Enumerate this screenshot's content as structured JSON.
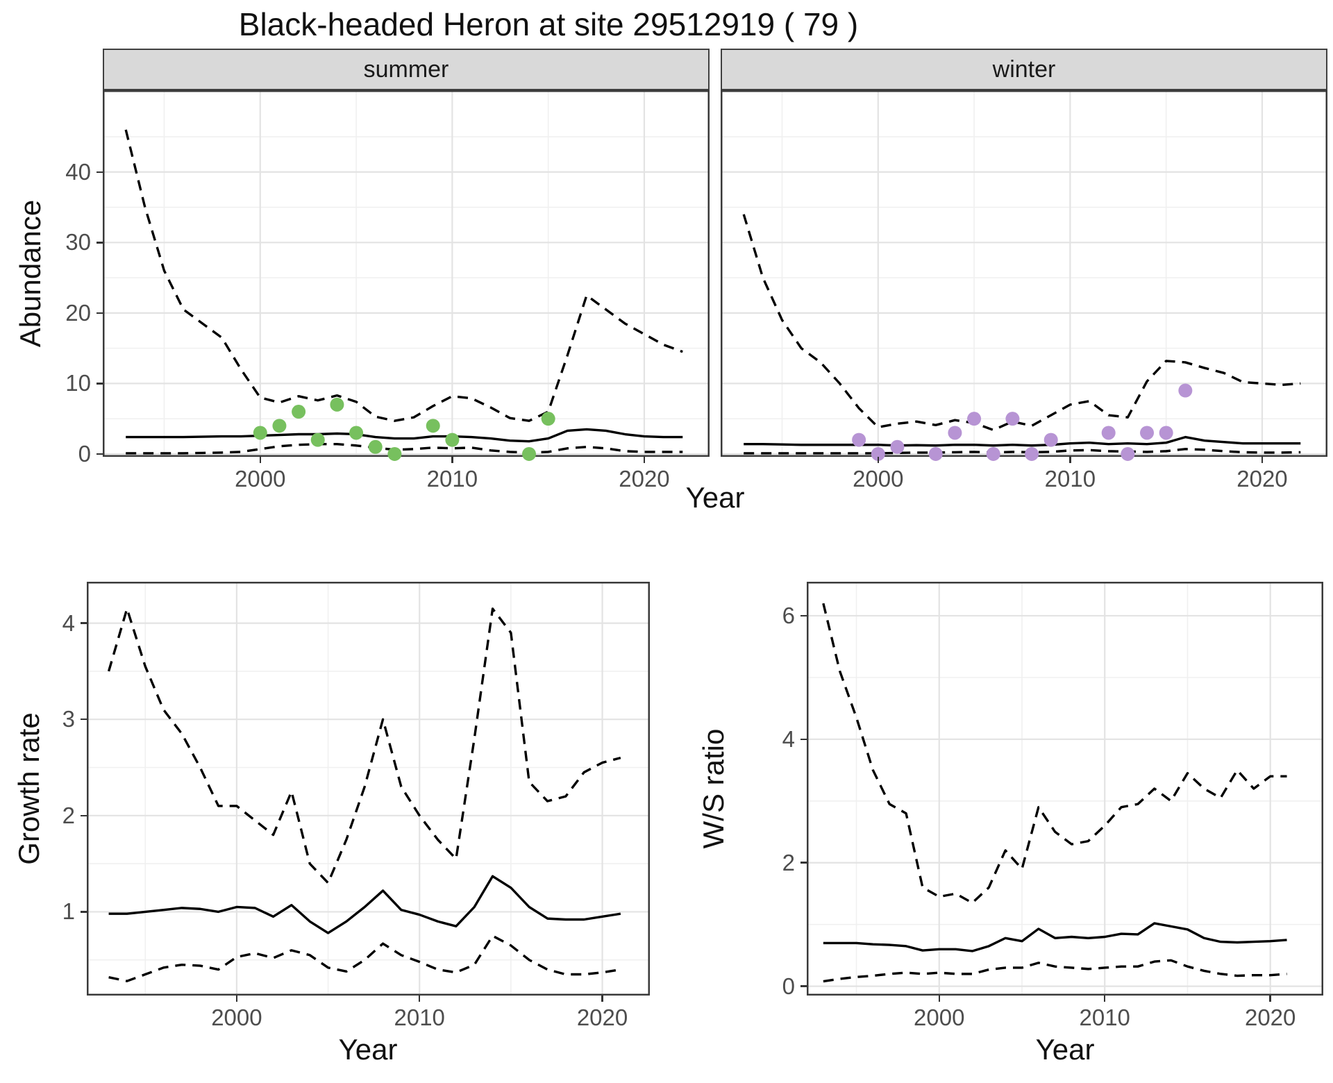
{
  "title": "Black-headed Heron at site 29512919 ( 79 )",
  "colors": {
    "summer_points": "#77c05e",
    "winter_points": "#b794d4",
    "line": "#000000",
    "strip_bg": "#d9d9d9",
    "grid_major": "#e3e3e3",
    "grid_minor": "#f0f0f0",
    "panel_border": "#3a3a3a",
    "axis_text": "#4d4d4d"
  },
  "chart_data": [
    {
      "type": "line",
      "panel": "abundance-summer",
      "facet": "summer",
      "xlabel": "Year",
      "ylabel": "Abundance",
      "xlim": [
        1991.8,
        2023.4
      ],
      "ylim": [
        -0.4,
        51.6
      ],
      "xticks": [
        2000,
        2010,
        2020
      ],
      "yticks": [
        0,
        10,
        20,
        30,
        40
      ],
      "x": [
        1993,
        1994,
        1995,
        1996,
        1997,
        1998,
        1999,
        2000,
        2001,
        2002,
        2003,
        2004,
        2005,
        2006,
        2007,
        2008,
        2009,
        2010,
        2011,
        2012,
        2013,
        2014,
        2015,
        2016,
        2017,
        2018,
        2019,
        2020,
        2021,
        2022
      ],
      "series": [
        {
          "name": "upper-ci",
          "style": "dashed",
          "values": [
            46,
            35,
            26,
            20.5,
            18.5,
            16.5,
            12,
            8,
            7.3,
            8.2,
            7.6,
            8.3,
            7.4,
            5.3,
            4.7,
            5.2,
            6.8,
            8.2,
            7.9,
            6.6,
            5.1,
            4.7,
            6,
            14,
            22.5,
            20.5,
            18.5,
            17,
            15.5,
            14.5
          ]
        },
        {
          "name": "median",
          "style": "solid",
          "values": [
            2.4,
            2.4,
            2.4,
            2.4,
            2.45,
            2.5,
            2.5,
            2.6,
            2.7,
            2.8,
            2.8,
            2.9,
            2.8,
            2.4,
            2.2,
            2.2,
            2.5,
            2.5,
            2.4,
            2.2,
            1.9,
            1.8,
            2.2,
            3.3,
            3.5,
            3.3,
            2.8,
            2.5,
            2.4,
            2.4
          ]
        },
        {
          "name": "lower-ci",
          "style": "dashed",
          "values": [
            0.1,
            0.1,
            0.1,
            0.1,
            0.15,
            0.2,
            0.3,
            0.7,
            1.1,
            1.3,
            1.4,
            1.4,
            1.2,
            0.9,
            0.6,
            0.7,
            0.9,
            0.8,
            0.9,
            0.5,
            0.3,
            0.2,
            0.3,
            0.8,
            1.0,
            0.8,
            0.4,
            0.3,
            0.3,
            0.3
          ]
        }
      ],
      "points": {
        "color_key": "summer_points",
        "data": [
          [
            2000,
            3
          ],
          [
            2001,
            4
          ],
          [
            2002,
            6
          ],
          [
            2003,
            2
          ],
          [
            2004,
            7
          ],
          [
            2005,
            3
          ],
          [
            2006,
            1
          ],
          [
            2007,
            0
          ],
          [
            2009,
            4
          ],
          [
            2010,
            2
          ],
          [
            2014,
            0
          ],
          [
            2015,
            5
          ]
        ]
      }
    },
    {
      "type": "line",
      "panel": "abundance-winter",
      "facet": "winter",
      "xlabel": "",
      "ylabel": "",
      "xlim": [
        1991.8,
        2023.4
      ],
      "ylim": [
        -0.4,
        51.6
      ],
      "xticks": [
        2000,
        2010,
        2020
      ],
      "yticks": [
        0,
        10,
        20,
        30,
        40
      ],
      "x": [
        1993,
        1994,
        1995,
        1996,
        1997,
        1998,
        1999,
        2000,
        2001,
        2002,
        2003,
        2004,
        2005,
        2006,
        2007,
        2008,
        2009,
        2010,
        2011,
        2012,
        2013,
        2014,
        2015,
        2016,
        2017,
        2018,
        2019,
        2020,
        2021,
        2022
      ],
      "series": [
        {
          "name": "upper-ci",
          "style": "dashed",
          "values": [
            34,
            25,
            19,
            15,
            13,
            10,
            6.5,
            3.8,
            4.3,
            4.6,
            4.1,
            4.8,
            4.4,
            3.4,
            4.6,
            4.0,
            5.5,
            7.0,
            7.5,
            5.5,
            5.2,
            10.3,
            13.2,
            13.0,
            12.2,
            11.5,
            10.2,
            10.0,
            9.8,
            10.0
          ]
        },
        {
          "name": "median",
          "style": "solid",
          "values": [
            1.4,
            1.4,
            1.35,
            1.3,
            1.3,
            1.3,
            1.3,
            1.3,
            1.2,
            1.25,
            1.2,
            1.3,
            1.3,
            1.2,
            1.3,
            1.2,
            1.3,
            1.5,
            1.6,
            1.4,
            1.5,
            1.4,
            1.6,
            2.4,
            1.9,
            1.7,
            1.5,
            1.5,
            1.5,
            1.5
          ]
        },
        {
          "name": "lower-ci",
          "style": "dashed",
          "values": [
            0.1,
            0.1,
            0.1,
            0.1,
            0.1,
            0.1,
            0.1,
            0.1,
            0.15,
            0.2,
            0.2,
            0.25,
            0.3,
            0.2,
            0.3,
            0.25,
            0.3,
            0.5,
            0.55,
            0.4,
            0.35,
            0.3,
            0.4,
            0.7,
            0.6,
            0.4,
            0.25,
            0.2,
            0.2,
            0.25
          ]
        }
      ],
      "points": {
        "color_key": "winter_points",
        "data": [
          [
            1999,
            2
          ],
          [
            2000,
            0
          ],
          [
            2001,
            1
          ],
          [
            2003,
            0
          ],
          [
            2004,
            3
          ],
          [
            2005,
            5
          ],
          [
            2006,
            0
          ],
          [
            2007,
            5
          ],
          [
            2008,
            0
          ],
          [
            2009,
            2
          ],
          [
            2012,
            3
          ],
          [
            2013,
            0
          ],
          [
            2014,
            3
          ],
          [
            2015,
            3
          ],
          [
            2016,
            9
          ]
        ]
      }
    },
    {
      "type": "line",
      "panel": "growth-rate",
      "facet": "",
      "xlabel": "Year",
      "ylabel": "Growth rate",
      "xlim": [
        1991.8,
        2022.6
      ],
      "ylim": [
        0.13,
        4.43
      ],
      "xticks": [
        2000,
        2010,
        2020
      ],
      "yticks": [
        1,
        2,
        3,
        4
      ],
      "x": [
        1993,
        1994,
        1995,
        1996,
        1997,
        1998,
        1999,
        2000,
        2001,
        2002,
        2003,
        2004,
        2005,
        2006,
        2007,
        2008,
        2009,
        2010,
        2011,
        2012,
        2013,
        2014,
        2015,
        2016,
        2017,
        2018,
        2019,
        2020,
        2021
      ],
      "series": [
        {
          "name": "upper-ci",
          "style": "dashed",
          "values": [
            3.5,
            4.15,
            3.55,
            3.1,
            2.85,
            2.5,
            2.1,
            2.1,
            1.95,
            1.8,
            2.25,
            1.5,
            1.3,
            1.75,
            2.3,
            3.0,
            2.3,
            2.0,
            1.75,
            1.55,
            2.8,
            4.15,
            3.9,
            2.35,
            2.15,
            2.2,
            2.45,
            2.55,
            2.6
          ]
        },
        {
          "name": "median",
          "style": "solid",
          "values": [
            0.98,
            0.98,
            1.0,
            1.02,
            1.04,
            1.03,
            1.0,
            1.05,
            1.04,
            0.95,
            1.07,
            0.9,
            0.78,
            0.9,
            1.05,
            1.22,
            1.02,
            0.97,
            0.9,
            0.85,
            1.05,
            1.37,
            1.25,
            1.05,
            0.93,
            0.92,
            0.92,
            0.95,
            0.98
          ]
        },
        {
          "name": "lower-ci",
          "style": "dashed",
          "values": [
            0.32,
            0.28,
            0.35,
            0.42,
            0.45,
            0.44,
            0.4,
            0.53,
            0.57,
            0.52,
            0.6,
            0.55,
            0.42,
            0.38,
            0.5,
            0.67,
            0.55,
            0.48,
            0.4,
            0.37,
            0.45,
            0.75,
            0.65,
            0.5,
            0.4,
            0.35,
            0.35,
            0.37,
            0.4
          ]
        }
      ],
      "points": null
    },
    {
      "type": "line",
      "panel": "ws-ratio",
      "facet": "",
      "xlabel": "Year",
      "ylabel": "W/S ratio",
      "xlim": [
        1992.0,
        2023.2
      ],
      "ylim": [
        -0.15,
        6.55
      ],
      "xticks": [
        2000,
        2010,
        2020
      ],
      "yticks": [
        0,
        2,
        4,
        6
      ],
      "x": [
        1993,
        1994,
        1995,
        1996,
        1997,
        1998,
        1999,
        2000,
        2001,
        2002,
        2003,
        2004,
        2005,
        2006,
        2007,
        2008,
        2009,
        2010,
        2011,
        2012,
        2013,
        2014,
        2015,
        2016,
        2017,
        2018,
        2019,
        2020,
        2021
      ],
      "series": [
        {
          "name": "upper-ci",
          "style": "dashed",
          "values": [
            6.2,
            5.1,
            4.35,
            3.5,
            2.95,
            2.8,
            1.6,
            1.45,
            1.5,
            1.35,
            1.6,
            2.2,
            1.9,
            2.9,
            2.5,
            2.3,
            2.35,
            2.6,
            2.9,
            2.95,
            3.2,
            3.0,
            3.45,
            3.2,
            3.05,
            3.5,
            3.2,
            3.4,
            3.4
          ]
        },
        {
          "name": "median",
          "style": "solid",
          "values": [
            0.7,
            0.7,
            0.7,
            0.68,
            0.67,
            0.65,
            0.58,
            0.6,
            0.6,
            0.57,
            0.65,
            0.78,
            0.73,
            0.93,
            0.78,
            0.8,
            0.78,
            0.8,
            0.85,
            0.84,
            1.02,
            0.97,
            0.92,
            0.78,
            0.72,
            0.71,
            0.72,
            0.73,
            0.75
          ]
        },
        {
          "name": "lower-ci",
          "style": "dashed",
          "values": [
            0.08,
            0.12,
            0.15,
            0.17,
            0.2,
            0.22,
            0.2,
            0.22,
            0.2,
            0.2,
            0.27,
            0.3,
            0.3,
            0.38,
            0.32,
            0.3,
            0.28,
            0.3,
            0.32,
            0.32,
            0.4,
            0.42,
            0.32,
            0.25,
            0.2,
            0.17,
            0.18,
            0.18,
            0.2
          ]
        }
      ],
      "points": null
    }
  ]
}
